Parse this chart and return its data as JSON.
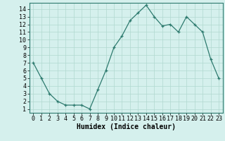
{
  "x": [
    0,
    1,
    2,
    3,
    4,
    5,
    6,
    7,
    8,
    9,
    10,
    11,
    12,
    13,
    14,
    15,
    16,
    17,
    18,
    19,
    20,
    21,
    22,
    23
  ],
  "y": [
    7,
    5,
    3,
    2,
    1.5,
    1.5,
    1.5,
    1,
    3.5,
    6,
    9,
    10.5,
    12.5,
    13.5,
    14.5,
    13,
    11.8,
    12,
    11,
    13,
    12,
    11,
    7.5,
    5
  ],
  "line_color": "#2d7a6e",
  "marker": "+",
  "background_color": "#d5f0ed",
  "grid_color": "#b0d8d0",
  "xlabel": "Humidex (Indice chaleur)",
  "xlabel_fontsize": 7,
  "tick_fontsize": 6,
  "xlim": [
    -0.5,
    23.5
  ],
  "ylim": [
    0.5,
    14.8
  ],
  "yticks": [
    1,
    2,
    3,
    4,
    5,
    6,
    7,
    8,
    9,
    10,
    11,
    12,
    13,
    14
  ],
  "xticks": [
    0,
    1,
    2,
    3,
    4,
    5,
    6,
    7,
    8,
    9,
    10,
    11,
    12,
    13,
    14,
    15,
    16,
    17,
    18,
    19,
    20,
    21,
    22,
    23
  ]
}
